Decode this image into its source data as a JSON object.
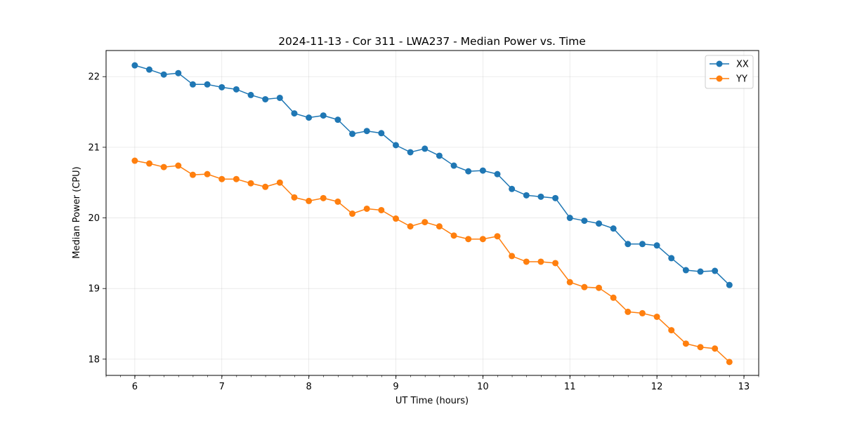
{
  "chart_data": {
    "type": "line",
    "title": "2024-11-13 - Cor 311 - LWA237 - Median Power vs. Time",
    "xlabel": "UT Time (hours)",
    "ylabel": "Median Power (CPU)",
    "xlim": [
      5.67,
      13.17
    ],
    "ylim": [
      17.77,
      22.37
    ],
    "xticks": [
      6,
      7,
      8,
      9,
      10,
      11,
      12,
      13
    ],
    "yticks": [
      18,
      19,
      20,
      21,
      22
    ],
    "grid": true,
    "legend_position": "top-right",
    "x": [
      6.0,
      6.1667,
      6.3333,
      6.5,
      6.6667,
      6.8333,
      7.0,
      7.1667,
      7.3333,
      7.5,
      7.6667,
      7.8333,
      8.0,
      8.1667,
      8.3333,
      8.5,
      8.6667,
      8.8333,
      9.0,
      9.1667,
      9.3333,
      9.5,
      9.6667,
      9.8333,
      10.0,
      10.1667,
      10.3333,
      10.5,
      10.6667,
      10.8333,
      11.0,
      11.1667,
      11.3333,
      11.5,
      11.6667,
      11.8333,
      12.0,
      12.1667,
      12.3333,
      12.5,
      12.6667,
      12.8333
    ],
    "series": [
      {
        "name": "XX",
        "color": "#1f77b4",
        "values": [
          22.16,
          22.1,
          22.03,
          22.05,
          21.89,
          21.89,
          21.85,
          21.82,
          21.74,
          21.68,
          21.7,
          21.48,
          21.42,
          21.45,
          21.39,
          21.19,
          21.23,
          21.2,
          21.03,
          20.93,
          20.98,
          20.88,
          20.74,
          20.66,
          20.67,
          20.62,
          20.41,
          20.32,
          20.3,
          20.28,
          20.0,
          19.96,
          19.92,
          19.85,
          19.63,
          19.63,
          19.61,
          19.43,
          19.26,
          19.24,
          19.25,
          19.05
        ]
      },
      {
        "name": "YY",
        "color": "#ff7f0e",
        "values": [
          20.81,
          20.77,
          20.72,
          20.74,
          20.61,
          20.62,
          20.55,
          20.55,
          20.49,
          20.44,
          20.5,
          20.29,
          20.24,
          20.28,
          20.23,
          20.06,
          20.13,
          20.11,
          19.99,
          19.88,
          19.94,
          19.88,
          19.75,
          19.7,
          19.7,
          19.74,
          19.46,
          19.38,
          19.38,
          19.36,
          19.09,
          19.02,
          19.01,
          18.87,
          18.67,
          18.65,
          18.6,
          18.41,
          18.22,
          18.17,
          18.15,
          17.96
        ]
      }
    ]
  }
}
